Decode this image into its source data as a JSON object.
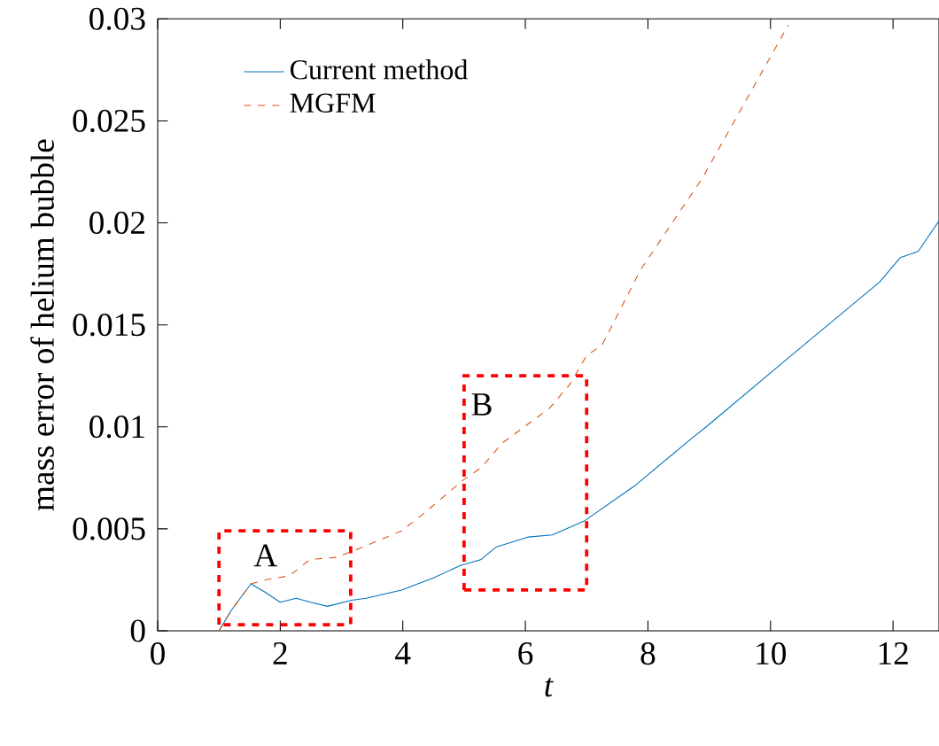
{
  "chart_data": {
    "type": "line",
    "xlabel": "t",
    "ylabel": "mass error of helium bubble",
    "xlim": [
      0,
      12.75
    ],
    "ylim": [
      0,
      0.03
    ],
    "xticks": [
      0,
      2,
      4,
      6,
      8,
      10,
      12
    ],
    "yticks": [
      0,
      0.005,
      0.01,
      0.015,
      0.02,
      0.025,
      0.03
    ],
    "legend": "top left",
    "grid": false,
    "series": [
      {
        "name": "Current method",
        "color": "#0072bd",
        "line_style": "solid",
        "x": [
          1.0,
          1.2,
          1.52,
          1.75,
          2.0,
          2.26,
          2.5,
          2.77,
          3.16,
          3.4,
          3.98,
          4.5,
          4.94,
          5.28,
          5.52,
          6.05,
          6.44,
          6.97,
          7.78,
          8.7,
          8.99,
          10.34,
          11.78,
          12.12,
          12.41,
          12.75
        ],
        "values": [
          0,
          0.001,
          0.0023,
          0.0019,
          0.0014,
          0.0016,
          0.0014,
          0.0012,
          0.0015,
          0.0016,
          0.002,
          0.0026,
          0.0032,
          0.0035,
          0.0041,
          0.0046,
          0.0047,
          0.0054,
          0.0071,
          0.0094,
          0.0101,
          0.0135,
          0.0171,
          0.0183,
          0.0186,
          0.0201
        ]
      },
      {
        "name": "MGFM",
        "color": "#d95319",
        "line_style": "dashed",
        "x": [
          1.0,
          1.2,
          1.52,
          1.76,
          2.15,
          2.49,
          2.92,
          3.26,
          3.98,
          4.36,
          4.99,
          5.28,
          5.62,
          6.39,
          6.73,
          7.0,
          7.25,
          7.88,
          8.89,
          10.29
        ],
        "values": [
          0,
          0.001,
          0.0023,
          0.0025,
          0.0027,
          0.0035,
          0.0036,
          0.004,
          0.0049,
          0.0058,
          0.0074,
          0.008,
          0.0092,
          0.0109,
          0.0121,
          0.0135,
          0.014,
          0.0177,
          0.0222,
          0.0297
        ]
      }
    ],
    "annotations": [
      "A",
      "B"
    ]
  }
}
